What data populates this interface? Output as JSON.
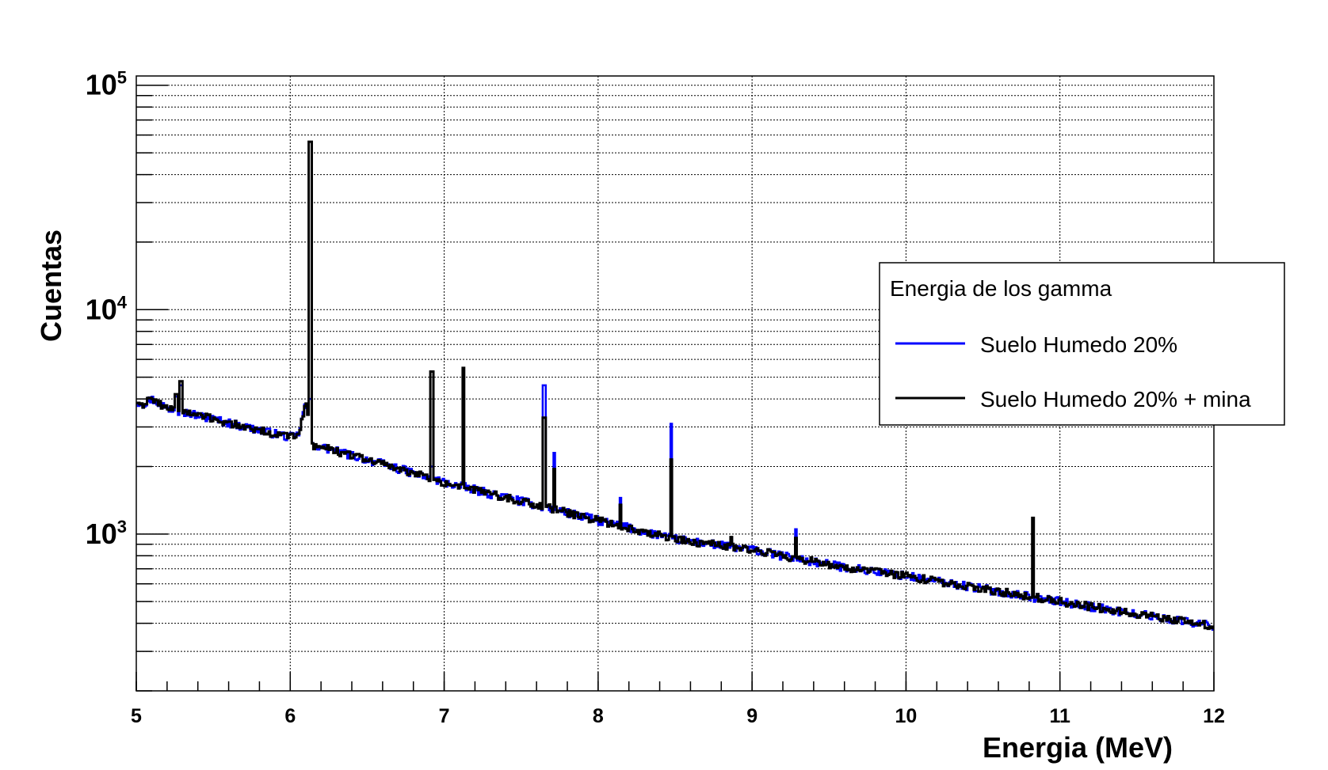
{
  "chart_data": {
    "type": "line",
    "title": "",
    "xlabel": "Energia (MeV)",
    "ylabel": "Cuentas",
    "xlim": [
      5,
      12
    ],
    "ylim": [
      200,
      110000
    ],
    "yscale": "log",
    "grid": true,
    "x_ticks": [
      "5",
      "6",
      "7",
      "8",
      "9",
      "10",
      "11",
      "12"
    ],
    "y_ticks": [
      {
        "base": "10",
        "exp": "3",
        "value": 1000
      },
      {
        "base": "10",
        "exp": "4",
        "value": 10000
      },
      {
        "base": "10",
        "exp": "5",
        "value": 100000
      }
    ],
    "legend": {
      "title": "Energia de los gamma",
      "position": "right",
      "entries": [
        "Suelo Humedo 20%",
        "Suelo Humedo 20% + mina"
      ]
    },
    "continuum": {
      "x": [
        5.0,
        5.05,
        5.1,
        5.2,
        5.5,
        5.8,
        6.0,
        6.05,
        6.08,
        6.1,
        6.14,
        6.5,
        7.0,
        7.5,
        8.0,
        8.5,
        9.0,
        9.5,
        10.0,
        10.5,
        11.0,
        11.5,
        12.0
      ],
      "y": [
        3900,
        3800,
        4000,
        3650,
        3250,
        2900,
        2700,
        2750,
        3300,
        3900,
        2500,
        2150,
        1700,
        1400,
        1150,
        950,
        850,
        730,
        650,
        570,
        500,
        440,
        390
      ]
    },
    "peaks": [
      {
        "x": 5.26,
        "y_black": 4200,
        "y_blue": 4100
      },
      {
        "x": 5.29,
        "y_black": 4800,
        "y_blue": 4600
      },
      {
        "x": 6.13,
        "y_black": 56000,
        "y_blue": 4000
      },
      {
        "x": 6.92,
        "y_black": 5300,
        "y_blue": 2000
      },
      {
        "x": 7.12,
        "y_black": 5500,
        "y_blue": 1700
      },
      {
        "x": 7.65,
        "y_black": 3300,
        "y_blue": 4600
      },
      {
        "x": 7.72,
        "y_black": 1950,
        "y_blue": 2300
      },
      {
        "x": 8.15,
        "y_black": 1350,
        "y_blue": 1450
      },
      {
        "x": 8.48,
        "y_black": 2150,
        "y_blue": 3100
      },
      {
        "x": 8.87,
        "y_black": 970,
        "y_blue": 960
      },
      {
        "x": 9.29,
        "y_black": 960,
        "y_blue": 1050
      },
      {
        "x": 10.83,
        "y_black": 1180,
        "y_blue": 560
      }
    ],
    "series": [
      {
        "name": "Suelo Humedo 20%",
        "color": "#0000ff",
        "noise": 0.045
      },
      {
        "name": "Suelo Humedo 20% + mina",
        "color": "#000000",
        "noise": 0.04
      }
    ]
  }
}
